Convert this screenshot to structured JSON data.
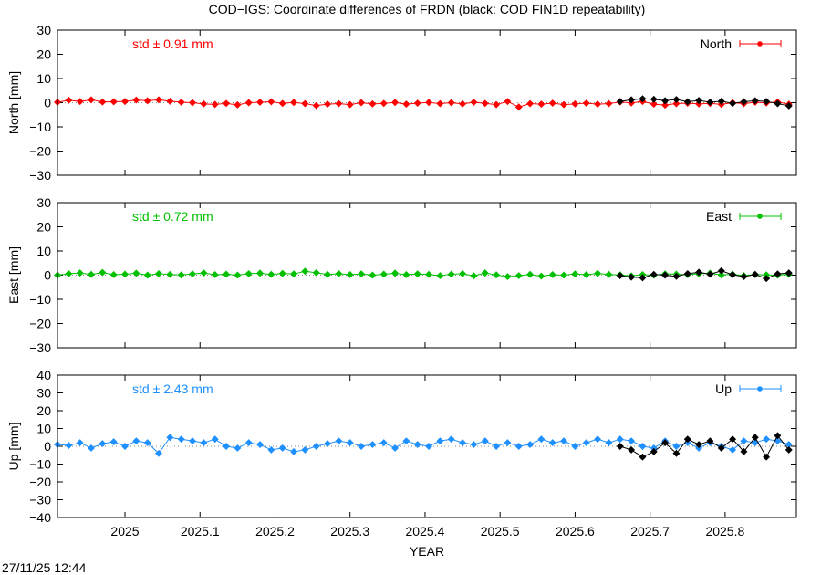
{
  "title": "COD−IGS: Coordinate differences of FRDN (black: COD FIN1D repeatability)",
  "xlabel": "YEAR",
  "timestamp": "27/11/25 12:44",
  "colors": {
    "north": "#ff0000",
    "east": "#00c000",
    "up": "#1e90ff",
    "repeatability": "#000000"
  },
  "chart_data": [
    {
      "type": "scatter",
      "component": "north",
      "ylabel": "North [mm]",
      "legend": "North",
      "std_text": "std ± 0.91 mm",
      "xlim": [
        2024.91,
        2025.895
      ],
      "ylim": [
        -30,
        30
      ],
      "x_ticks": [
        "2025",
        "2025.1",
        "2025.2",
        "2025.3",
        "2025.4",
        "2025.5",
        "2025.6",
        "2025.7",
        "2025.8"
      ],
      "y_ticks": [
        "30",
        "20",
        "10",
        "0",
        "−10",
        "−20",
        "−30"
      ],
      "y_tick_values": [
        30,
        20,
        10,
        0,
        -10,
        -20,
        -30
      ],
      "series": [
        {
          "color": "#ff0000",
          "x": [
            2024.91,
            2024.925,
            2024.94,
            2024.955,
            2024.97,
            2024.985,
            2025.0,
            2025.015,
            2025.03,
            2025.045,
            2025.06,
            2025.075,
            2025.09,
            2025.105,
            2025.12,
            2025.135,
            2025.15,
            2025.165,
            2025.18,
            2025.195,
            2025.21,
            2025.225,
            2025.24,
            2025.255,
            2025.27,
            2025.285,
            2025.3,
            2025.315,
            2025.33,
            2025.345,
            2025.36,
            2025.375,
            2025.39,
            2025.405,
            2025.42,
            2025.435,
            2025.45,
            2025.465,
            2025.48,
            2025.495,
            2025.51,
            2025.525,
            2025.54,
            2025.555,
            2025.57,
            2025.585,
            2025.6,
            2025.615,
            2025.63,
            2025.645,
            2025.66,
            2025.675,
            2025.69,
            2025.705,
            2025.72,
            2025.735,
            2025.75,
            2025.765,
            2025.78,
            2025.795,
            2025.81,
            2025.825,
            2025.84,
            2025.855,
            2025.87,
            2025.885
          ],
          "y": [
            0.2,
            1.0,
            0.5,
            1.2,
            0.3,
            0.4,
            0.5,
            1.1,
            0.8,
            1.2,
            0.6,
            0.2,
            0.0,
            -0.5,
            -0.7,
            -0.3,
            -0.9,
            0.0,
            0.2,
            0.4,
            -0.3,
            0.1,
            -0.4,
            -1.2,
            -0.6,
            -0.4,
            -0.8,
            0.0,
            -0.5,
            -0.3,
            0.1,
            -0.6,
            -0.2,
            0.1,
            -0.4,
            0.0,
            -0.5,
            0.2,
            -0.3,
            -0.8,
            0.5,
            -1.8,
            -0.4,
            -0.6,
            -0.2,
            -0.8,
            -0.5,
            -0.2,
            -0.6,
            -0.4,
            0.3,
            -0.1,
            0.5,
            -0.6,
            -1.0,
            -0.4,
            -0.2,
            -0.5,
            -0.3,
            -0.7,
            0.0,
            -0.4,
            0.2,
            -0.1,
            0.3,
            -0.6
          ]
        },
        {
          "color": "#000000",
          "x": [
            2025.66,
            2025.675,
            2025.69,
            2025.705,
            2025.72,
            2025.735,
            2025.75,
            2025.765,
            2025.78,
            2025.795,
            2025.81,
            2025.825,
            2025.84,
            2025.855,
            2025.87,
            2025.885
          ],
          "y": [
            0.5,
            1.2,
            1.6,
            1.4,
            0.8,
            1.3,
            0.4,
            0.9,
            0.2,
            0.6,
            -0.3,
            0.4,
            0.8,
            0.5,
            -0.4,
            -1.3
          ]
        }
      ]
    },
    {
      "type": "scatter",
      "component": "east",
      "ylabel": "East [mm]",
      "legend": "East",
      "std_text": "std ± 0.72 mm",
      "xlim": [
        2024.91,
        2025.895
      ],
      "ylim": [
        -30,
        30
      ],
      "x_ticks": [
        "2025",
        "2025.1",
        "2025.2",
        "2025.3",
        "2025.4",
        "2025.5",
        "2025.6",
        "2025.7",
        "2025.8"
      ],
      "y_ticks": [
        "30",
        "20",
        "10",
        "0",
        "−10",
        "−20",
        "−30"
      ],
      "y_tick_values": [
        30,
        20,
        10,
        0,
        -10,
        -20,
        -30
      ],
      "series": [
        {
          "color": "#00c000",
          "x": [
            2024.91,
            2024.925,
            2024.94,
            2024.955,
            2024.97,
            2024.985,
            2025.0,
            2025.015,
            2025.03,
            2025.045,
            2025.06,
            2025.075,
            2025.09,
            2025.105,
            2025.12,
            2025.135,
            2025.15,
            2025.165,
            2025.18,
            2025.195,
            2025.21,
            2025.225,
            2025.24,
            2025.255,
            2025.27,
            2025.285,
            2025.3,
            2025.315,
            2025.33,
            2025.345,
            2025.36,
            2025.375,
            2025.39,
            2025.405,
            2025.42,
            2025.435,
            2025.45,
            2025.465,
            2025.48,
            2025.495,
            2025.51,
            2025.525,
            2025.54,
            2025.555,
            2025.57,
            2025.585,
            2025.6,
            2025.615,
            2025.63,
            2025.645,
            2025.66,
            2025.675,
            2025.69,
            2025.705,
            2025.72,
            2025.735,
            2025.75,
            2025.765,
            2025.78,
            2025.795,
            2025.81,
            2025.825,
            2025.84,
            2025.855,
            2025.87,
            2025.885
          ],
          "y": [
            0.0,
            0.6,
            0.9,
            0.3,
            1.1,
            0.2,
            0.4,
            0.8,
            0.0,
            0.6,
            0.3,
            0.1,
            0.5,
            0.9,
            0.2,
            0.4,
            0.0,
            0.6,
            0.8,
            0.3,
            0.7,
            0.5,
            1.6,
            1.0,
            0.3,
            0.6,
            0.2,
            0.5,
            0.0,
            0.4,
            0.8,
            0.2,
            0.5,
            0.3,
            -0.2,
            0.4,
            0.6,
            -0.3,
            0.9,
            0.1,
            -0.6,
            -0.2,
            0.3,
            -0.4,
            0.2,
            0.0,
            0.5,
            0.2,
            0.7,
            0.3,
            0.1,
            -0.3,
            0.2,
            0.0,
            0.5,
            0.4,
            0.2,
            0.6,
            0.8,
            0.1,
            0.4,
            -0.2,
            0.3,
            0.1,
            0.0,
            0.4
          ]
        },
        {
          "color": "#000000",
          "x": [
            2025.66,
            2025.675,
            2025.69,
            2025.705,
            2025.72,
            2025.735,
            2025.75,
            2025.765,
            2025.78,
            2025.795,
            2025.81,
            2025.825,
            2025.84,
            2025.855,
            2025.87,
            2025.885
          ],
          "y": [
            -0.2,
            -0.8,
            -1.1,
            0.3,
            0.0,
            -0.5,
            0.6,
            1.2,
            0.4,
            1.8,
            0.2,
            -0.6,
            0.3,
            -1.4,
            0.5,
            0.9
          ]
        }
      ]
    },
    {
      "type": "scatter",
      "component": "up",
      "ylabel": "Up [mm]",
      "legend": "Up",
      "std_text": "std ± 2.43 mm",
      "xlim": [
        2024.91,
        2025.895
      ],
      "ylim": [
        -40,
        40
      ],
      "x_ticks": [
        "2025",
        "2025.1",
        "2025.2",
        "2025.3",
        "2025.4",
        "2025.5",
        "2025.6",
        "2025.7",
        "2025.8"
      ],
      "y_ticks": [
        "40",
        "30",
        "20",
        "10",
        "0",
        "−10",
        "−20",
        "−30",
        "−40"
      ],
      "y_tick_values": [
        40,
        30,
        20,
        10,
        0,
        -10,
        -20,
        -30,
        -40
      ],
      "series": [
        {
          "color": "#1e90ff",
          "x": [
            2024.91,
            2024.925,
            2024.94,
            2024.955,
            2024.97,
            2024.985,
            2025.0,
            2025.015,
            2025.03,
            2025.045,
            2025.06,
            2025.075,
            2025.09,
            2025.105,
            2025.12,
            2025.135,
            2025.15,
            2025.165,
            2025.18,
            2025.195,
            2025.21,
            2025.225,
            2025.24,
            2025.255,
            2025.27,
            2025.285,
            2025.3,
            2025.315,
            2025.33,
            2025.345,
            2025.36,
            2025.375,
            2025.39,
            2025.405,
            2025.42,
            2025.435,
            2025.45,
            2025.465,
            2025.48,
            2025.495,
            2025.51,
            2025.525,
            2025.54,
            2025.555,
            2025.57,
            2025.585,
            2025.6,
            2025.615,
            2025.63,
            2025.645,
            2025.66,
            2025.675,
            2025.69,
            2025.705,
            2025.72,
            2025.735,
            2025.75,
            2025.765,
            2025.78,
            2025.795,
            2025.81,
            2025.825,
            2025.84,
            2025.855,
            2025.87,
            2025.885
          ],
          "y": [
            1.0,
            0.5,
            2.0,
            -1.0,
            1.5,
            2.5,
            0.0,
            3.0,
            2.0,
            -4.0,
            5.0,
            4.0,
            3.0,
            2.0,
            4.0,
            0.0,
            -1.0,
            2.0,
            1.0,
            -2.0,
            -1.0,
            -3.0,
            -2.0,
            0.0,
            1.5,
            3.0,
            2.0,
            0.0,
            1.0,
            2.0,
            -1.0,
            3.0,
            1.0,
            0.0,
            3.0,
            4.0,
            2.0,
            1.0,
            3.0,
            0.0,
            2.0,
            0.0,
            1.0,
            4.0,
            2.0,
            3.0,
            0.0,
            2.0,
            4.0,
            2.0,
            4.0,
            3.0,
            0.0,
            -1.0,
            3.0,
            0.0,
            2.0,
            -1.0,
            2.0,
            0.0,
            -2.0,
            3.0,
            2.0,
            4.0,
            3.0,
            1.0
          ]
        },
        {
          "color": "#000000",
          "x": [
            2025.66,
            2025.675,
            2025.69,
            2025.705,
            2025.72,
            2025.735,
            2025.75,
            2025.765,
            2025.78,
            2025.795,
            2025.81,
            2025.825,
            2025.84,
            2025.855,
            2025.87,
            2025.885
          ],
          "y": [
            0.0,
            -2.0,
            -6.0,
            -3.0,
            2.0,
            -4.0,
            4.0,
            1.0,
            3.0,
            -1.0,
            4.0,
            -3.0,
            5.0,
            -6.0,
            6.0,
            -2.0
          ]
        }
      ]
    }
  ]
}
